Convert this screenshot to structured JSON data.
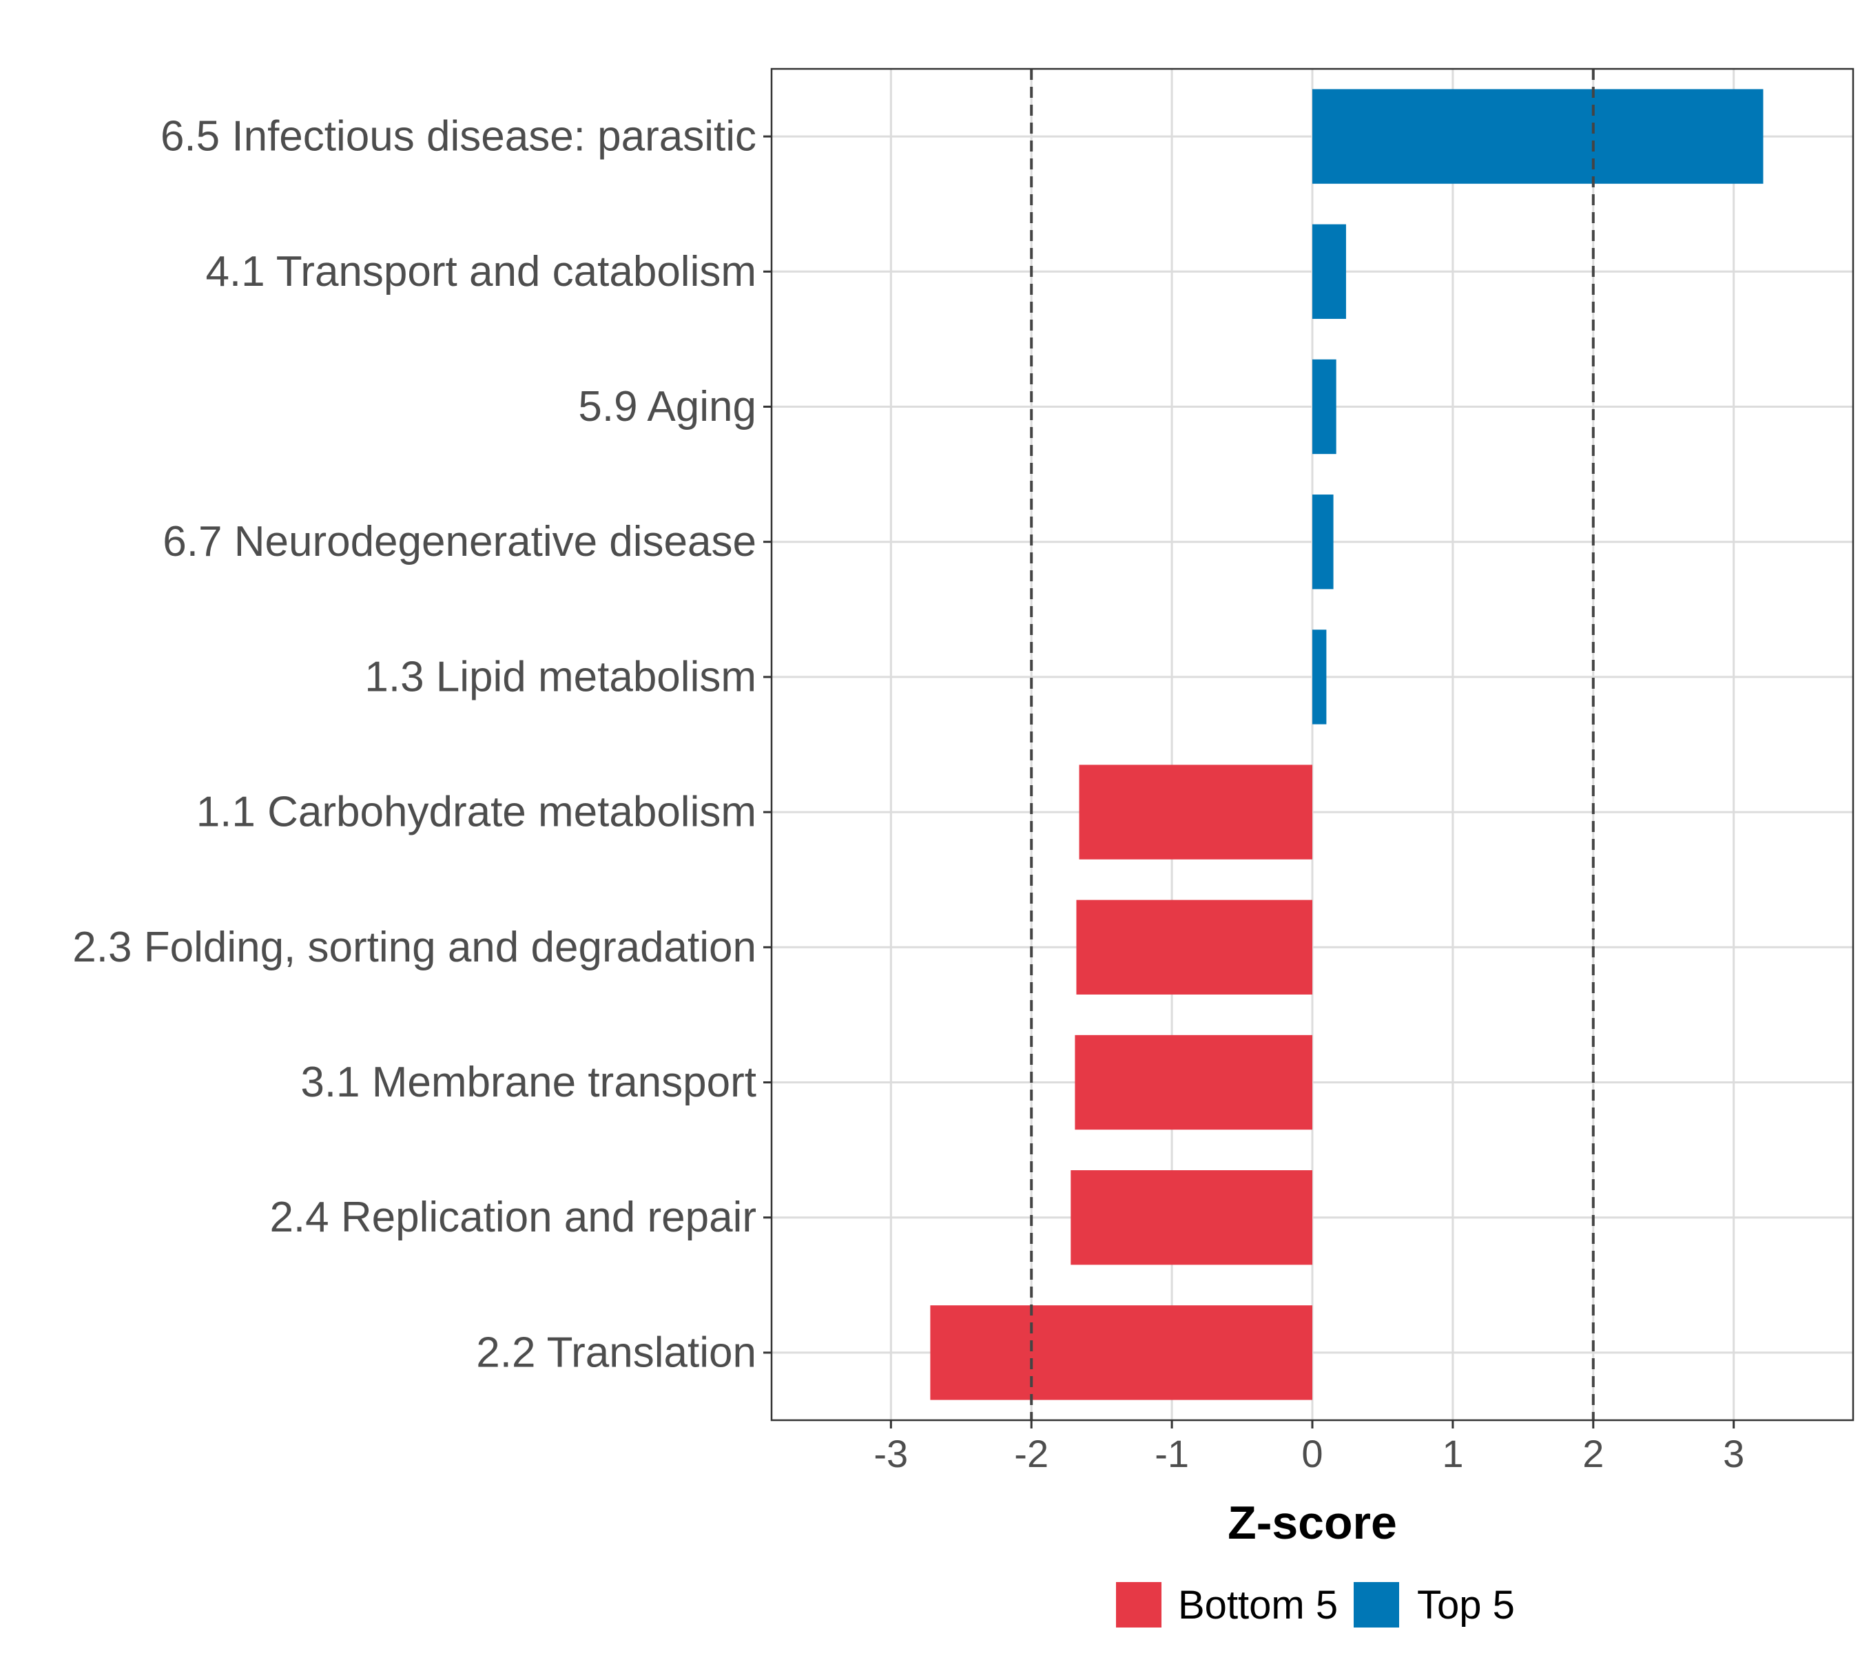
{
  "chart_data": {
    "type": "bar",
    "orientation": "horizontal",
    "categories": [
      "6.5 Infectious disease: parasitic",
      "4.1 Transport and catabolism",
      "5.9 Aging",
      "6.7 Neurodegenerative disease",
      "1.3 Lipid metabolism",
      "1.1 Carbohydrate metabolism",
      "2.3 Folding, sorting and degradation",
      "3.1 Membrane transport",
      "2.4 Replication and repair",
      "2.2 Translation"
    ],
    "values": [
      3.21,
      0.24,
      0.17,
      0.15,
      0.1,
      -1.66,
      -1.68,
      -1.69,
      -1.72,
      -2.72
    ],
    "groups": [
      "Top 5",
      "Top 5",
      "Top 5",
      "Top 5",
      "Top 5",
      "Bottom 5",
      "Bottom 5",
      "Bottom 5",
      "Bottom 5",
      "Bottom 5"
    ],
    "group_colors": {
      "Bottom 5": "#E63946",
      "Top 5": "#0077B6"
    },
    "xlabel": "Z-score",
    "ylabel": "",
    "xlim": [
      -3.85,
      3.85
    ],
    "xticks": [
      -3,
      -2,
      -1,
      0,
      1,
      2,
      3
    ],
    "xtick_labels": [
      "-3",
      "-2",
      "-1",
      "0",
      "1",
      "2",
      "3"
    ],
    "reference_lines": [
      -2,
      2
    ],
    "grid": true,
    "legend": {
      "position": "bottom",
      "entries": [
        {
          "label": "Bottom 5",
          "color": "#E63946"
        },
        {
          "label": "Top 5",
          "color": "#0077B6"
        }
      ]
    }
  }
}
